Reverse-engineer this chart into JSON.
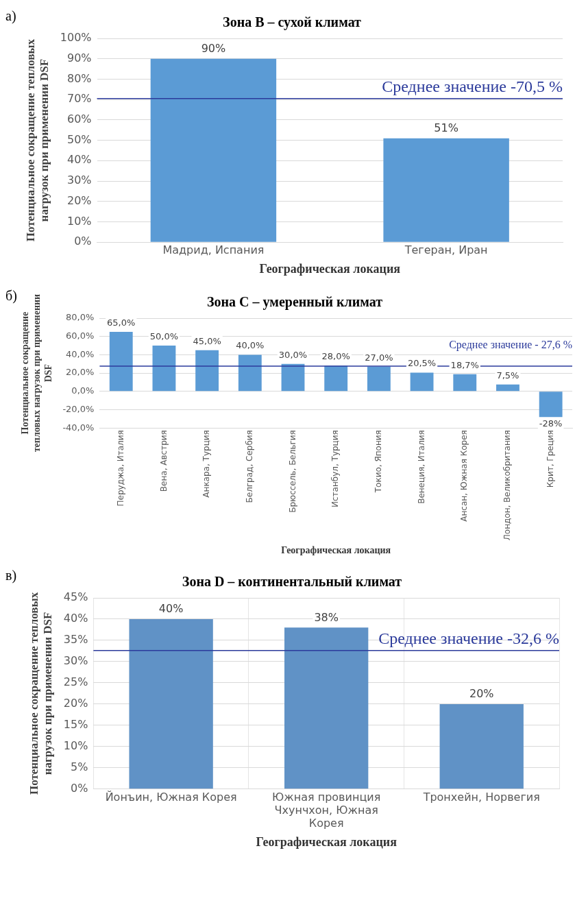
{
  "chart_data": [
    {
      "type": "bar",
      "title": "Зона B – сухой климат",
      "xlabel": "Географическая локация",
      "ylabel": "Потенциальное сокращение тепловых нагрузок при применении DSF",
      "annotations": [
        "а)"
      ],
      "categories": [
        "Мадрид, Испания",
        "Тегеран, Иран"
      ],
      "values": [
        90,
        51
      ],
      "value_labels": [
        "90%",
        "51%"
      ],
      "color": "#5b9bd5",
      "ylim": [
        0,
        100
      ],
      "yticks": [
        {
          "value": 0,
          "label": "0%"
        },
        {
          "value": 10,
          "label": "10%"
        },
        {
          "value": 20,
          "label": "20%"
        },
        {
          "value": 30,
          "label": "30%"
        },
        {
          "value": 40,
          "label": "40%"
        },
        {
          "value": 50,
          "label": "50%"
        },
        {
          "value": 60,
          "label": "60%"
        },
        {
          "value": 70,
          "label": "70%"
        },
        {
          "value": 80,
          "label": "80%"
        },
        {
          "value": 90,
          "label": "90%"
        },
        {
          "value": 100,
          "label": "100%"
        }
      ],
      "grid": "y",
      "legend": false,
      "ref_lines": [
        {
          "axis": "y",
          "value": 70.5,
          "label": "Среднее значение -70,5 %",
          "color": "#2b3a9b"
        }
      ]
    },
    {
      "type": "bar",
      "title": "Зона C – умеренный климат",
      "xlabel": "Географическая локация",
      "ylabel": "Потенциальное сокращение тепловых нагрузок при применении DSF",
      "annotations": [
        "б)"
      ],
      "categories": [
        "Перуджа, Италия",
        "Вена, Австрия",
        "Анкара, Турция",
        "Белград, Сербия",
        "Брюссель, Бельгия",
        "Истанбул, Турция",
        "Токио, Япония",
        "Венеция, Италия",
        "Ансан, Южная Корея",
        "Лондон, Великобритания",
        "Крит, Греция"
      ],
      "values": [
        65,
        50,
        45,
        40,
        30,
        28,
        27,
        20.5,
        18.7,
        7.5,
        -28
      ],
      "value_labels": [
        "65,0%",
        "50,0%",
        "45,0%",
        "40,0%",
        "30,0%",
        "28,0%",
        "27,0%",
        "20,5%",
        "18,7%",
        "7,5%",
        "-28%"
      ],
      "color": "#5b9bd5",
      "ylim": [
        -40,
        80
      ],
      "yticks": [
        {
          "value": -40,
          "label": "-40,0%"
        },
        {
          "value": -20,
          "label": "-20,0%"
        },
        {
          "value": 0,
          "label": "0,0%"
        },
        {
          "value": 20,
          "label": "20,0%"
        },
        {
          "value": 40,
          "label": "40,0%"
        },
        {
          "value": 60,
          "label": "60,0%"
        },
        {
          "value": 80,
          "label": "80,0%"
        }
      ],
      "grid": "y",
      "legend": false,
      "ref_lines": [
        {
          "axis": "y",
          "value": 27.6,
          "label": "Среднее значение - 27,6 %",
          "color": "#2b3a9b"
        }
      ]
    },
    {
      "type": "bar",
      "title": "Зона D – континентальный климат",
      "xlabel": "Географическая локация",
      "ylabel": "Потенциальное сокращение тепловых нагрузок при применении DSF",
      "annotations": [
        "в)"
      ],
      "categories": [
        "Йонъин, Южная Корея",
        "Южная провинция Чхунчхон, Южная Корея",
        "Тронхейн, Норвегия"
      ],
      "values": [
        40,
        38,
        20
      ],
      "value_labels": [
        "40%",
        "38%",
        "20%"
      ],
      "color": "#6092c6",
      "ylim": [
        0,
        45
      ],
      "yticks": [
        {
          "value": 0,
          "label": "0%"
        },
        {
          "value": 5,
          "label": "5%"
        },
        {
          "value": 10,
          "label": "10%"
        },
        {
          "value": 15,
          "label": "15%"
        },
        {
          "value": 20,
          "label": "20%"
        },
        {
          "value": 25,
          "label": "25%"
        },
        {
          "value": 30,
          "label": "30%"
        },
        {
          "value": 35,
          "label": "35%"
        },
        {
          "value": 40,
          "label": "40%"
        },
        {
          "value": 45,
          "label": "45%"
        }
      ],
      "grid": true,
      "legend": false,
      "ref_lines": [
        {
          "axis": "y",
          "value": 32.6,
          "label": "Среднее значение -32,6 %",
          "color": "#2b3a9b"
        }
      ]
    }
  ]
}
